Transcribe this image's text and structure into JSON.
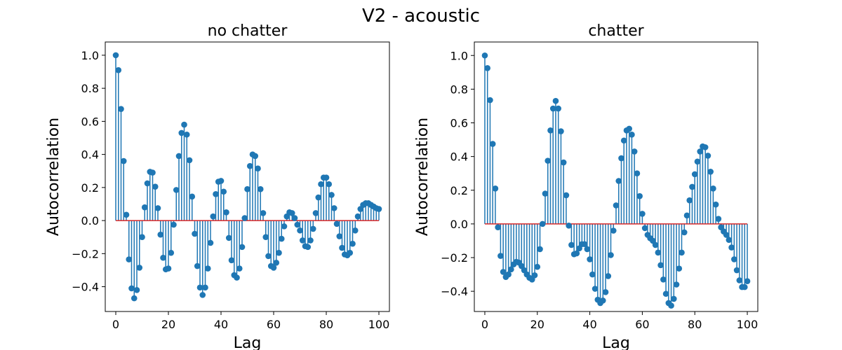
{
  "suptitle": "V2 - acoustic",
  "colors": {
    "stem": "#1f77b4",
    "baseline": "#d62728",
    "axes": "#000000"
  },
  "chart_data": [
    {
      "type": "stem",
      "title": "no chatter",
      "xlabel": "Lag",
      "ylabel": "Autocorrelation",
      "xlim": [
        -4,
        104
      ],
      "ylim": [
        -0.55,
        1.08
      ],
      "xticks": [
        0,
        20,
        40,
        60,
        80,
        100
      ],
      "xtick_labels": [
        "0",
        "20",
        "40",
        "60",
        "80",
        "100"
      ],
      "yticks": [
        -0.4,
        -0.2,
        0.0,
        0.2,
        0.4,
        0.6,
        0.8,
        1.0
      ],
      "ytick_labels": [
        "−0.4",
        "−0.2",
        "0.0",
        "0.2",
        "0.4",
        "0.6",
        "0.8",
        "1.0"
      ],
      "baseline": 0,
      "values": [
        1.0,
        0.91,
        0.675,
        0.36,
        0.035,
        -0.235,
        -0.41,
        -0.47,
        -0.42,
        -0.285,
        -0.1,
        0.08,
        0.225,
        0.295,
        0.29,
        0.205,
        0.075,
        -0.085,
        -0.225,
        -0.295,
        -0.29,
        -0.195,
        -0.025,
        0.185,
        0.39,
        0.53,
        0.58,
        0.52,
        0.365,
        0.145,
        -0.08,
        -0.275,
        -0.405,
        -0.45,
        -0.405,
        -0.29,
        -0.135,
        0.025,
        0.16,
        0.235,
        0.24,
        0.175,
        0.05,
        -0.105,
        -0.24,
        -0.33,
        -0.345,
        -0.29,
        -0.16,
        0.015,
        0.19,
        0.33,
        0.4,
        0.39,
        0.315,
        0.19,
        0.045,
        -0.1,
        -0.215,
        -0.275,
        -0.285,
        -0.255,
        -0.195,
        -0.11,
        -0.035,
        0.025,
        0.05,
        0.045,
        0.015,
        -0.025,
        -0.06,
        -0.12,
        -0.155,
        -0.16,
        -0.12,
        -0.05,
        0.045,
        0.14,
        0.22,
        0.26,
        0.26,
        0.22,
        0.155,
        0.075,
        -0.02,
        -0.095,
        -0.165,
        -0.205,
        -0.21,
        -0.195,
        -0.14,
        -0.06,
        0.025,
        0.07,
        0.095,
        0.105,
        0.105,
        0.095,
        0.085,
        0.075,
        0.07
      ]
    },
    {
      "type": "stem",
      "title": "chatter",
      "xlabel": "Lag",
      "ylabel": "Autocorrelation",
      "xlim": [
        -4,
        104
      ],
      "ylim": [
        -0.52,
        1.08
      ],
      "xticks": [
        0,
        20,
        40,
        60,
        80,
        100
      ],
      "xtick_labels": [
        "0",
        "20",
        "40",
        "60",
        "80",
        "100"
      ],
      "yticks": [
        -0.4,
        -0.2,
        0.0,
        0.2,
        0.4,
        0.6,
        0.8,
        1.0
      ],
      "ytick_labels": [
        "−0.4",
        "−0.2",
        "0.0",
        "0.2",
        "0.4",
        "0.6",
        "0.8",
        "1.0"
      ],
      "baseline": 0,
      "values": [
        1.0,
        0.925,
        0.735,
        0.475,
        0.21,
        -0.02,
        -0.19,
        -0.285,
        -0.315,
        -0.3,
        -0.27,
        -0.24,
        -0.225,
        -0.23,
        -0.25,
        -0.275,
        -0.3,
        -0.32,
        -0.33,
        -0.305,
        -0.255,
        -0.15,
        0.0,
        0.18,
        0.375,
        0.555,
        0.685,
        0.73,
        0.685,
        0.55,
        0.365,
        0.17,
        -0.01,
        -0.125,
        -0.18,
        -0.175,
        -0.145,
        -0.12,
        -0.12,
        -0.15,
        -0.21,
        -0.3,
        -0.385,
        -0.45,
        -0.47,
        -0.455,
        -0.405,
        -0.31,
        -0.185,
        -0.04,
        0.11,
        0.255,
        0.39,
        0.495,
        0.555,
        0.565,
        0.53,
        0.43,
        0.3,
        0.165,
        0.06,
        -0.025,
        -0.065,
        -0.085,
        -0.1,
        -0.125,
        -0.17,
        -0.245,
        -0.33,
        -0.415,
        -0.47,
        -0.485,
        -0.445,
        -0.36,
        -0.265,
        -0.17,
        -0.05,
        0.05,
        0.14,
        0.22,
        0.295,
        0.37,
        0.43,
        0.46,
        0.455,
        0.405,
        0.31,
        0.21,
        0.115,
        0.03,
        -0.02,
        -0.045,
        -0.065,
        -0.095,
        -0.14,
        -0.21,
        -0.275,
        -0.335,
        -0.375,
        -0.375,
        -0.34
      ]
    }
  ]
}
